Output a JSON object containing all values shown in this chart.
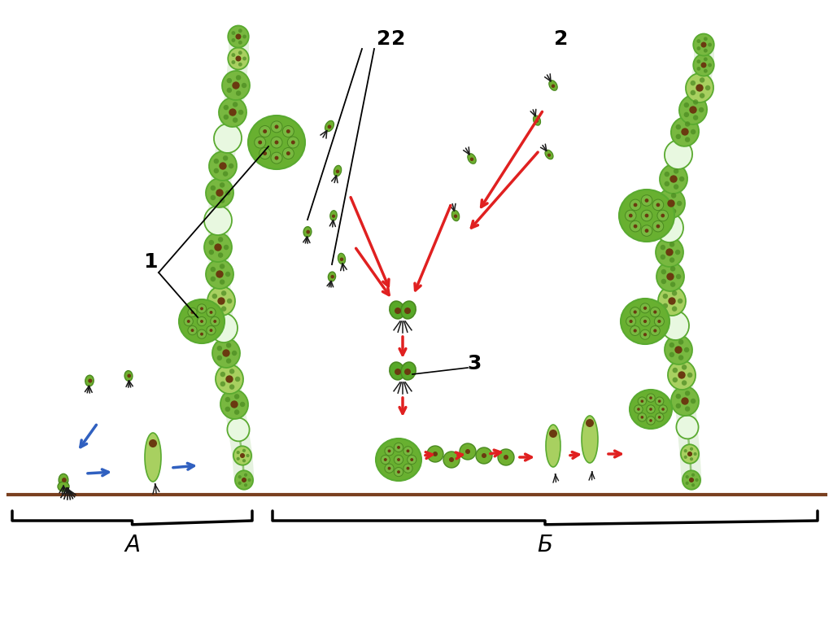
{
  "background_color": "#ffffff",
  "cell_green_light": "#a8d060",
  "cell_green_mid": "#78b840",
  "cell_green_dark": "#4a8a20",
  "cell_outline": "#5aaa30",
  "cell_white": "#e8f8e0",
  "nucleus_dark": "#3a2a10",
  "nucleus_brown": "#6a3a10",
  "sporangium_green": "#68b030",
  "zoospore_green": "#70b030",
  "flagella_color": "#1a1a1a",
  "arrow_red": "#e02020",
  "arrow_blue": "#3060c0",
  "ground_color": "#7a4020",
  "bracket_color": "#000000",
  "label_1": "1",
  "label_2": "2",
  "label_3": "3",
  "label_A": "А",
  "label_B": "Б"
}
